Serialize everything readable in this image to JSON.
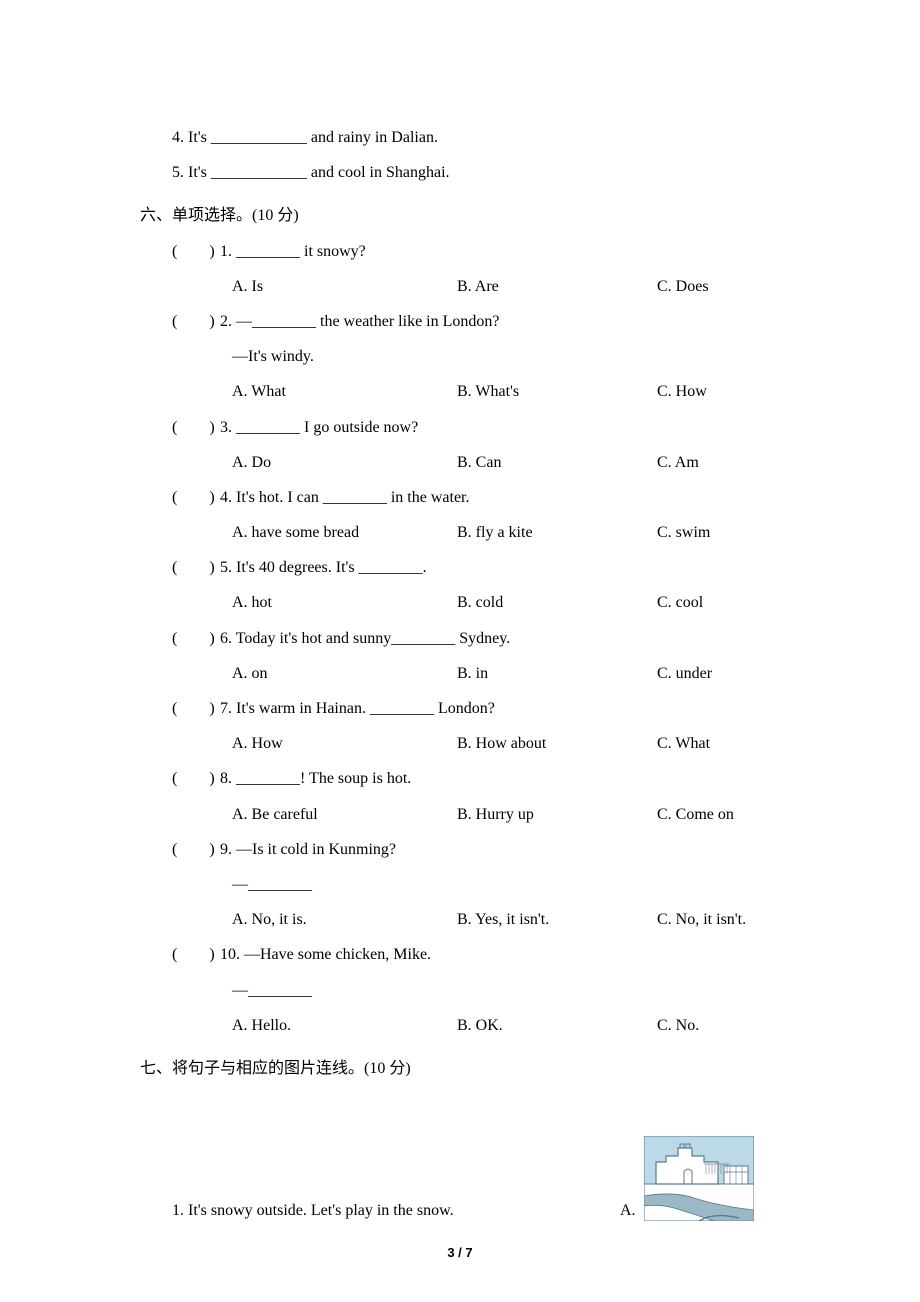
{
  "fill": {
    "q4": "4. It's ____________ and rainy in Dalian.",
    "q5": "5. It's ____________ and cool in Shanghai."
  },
  "section6": {
    "heading": "六、单项选择。(10 分)",
    "items": [
      {
        "bracket": "(　　)",
        "q": "1. ________ it snowy?",
        "followups": [],
        "a": "A. Is",
        "b": "B. Are",
        "c": "C. Does"
      },
      {
        "bracket": "(　　)",
        "q": "2. —________ the weather like in London?",
        "followups": [
          "—It's windy."
        ],
        "a": "A. What",
        "b": "B. What's",
        "c": "C. How"
      },
      {
        "bracket": "(　　)",
        "q": "3. ________ I go outside now?",
        "followups": [],
        "a": "A. Do",
        "b": "B. Can",
        "c": "C. Am"
      },
      {
        "bracket": "(　　)",
        "q": "4. It's hot. I can ________ in the water.",
        "followups": [],
        "a": "A. have some bread",
        "b": "B. fly a kite",
        "c": "C. swim"
      },
      {
        "bracket": "(　　)",
        "q": "5. It's 40 degrees. It's ________.",
        "followups": [],
        "a": "A. hot",
        "b": "B. cold",
        "c": "C. cool"
      },
      {
        "bracket": "(　　)",
        "q": "6. Today it's hot and sunny________ Sydney.",
        "followups": [],
        "a": "A. on",
        "b": "B. in",
        "c": "C. under"
      },
      {
        "bracket": "(　　)",
        "q": "7. It's warm in Hainan. ________ London?",
        "followups": [],
        "a": "A. How",
        "b": "B. How about",
        "c": "C. What"
      },
      {
        "bracket": "(　　)",
        "q": "8. ________! The soup is hot.",
        "followups": [],
        "a": "A. Be careful",
        "b": "B. Hurry up",
        "c": "C. Come on"
      },
      {
        "bracket": "(　　)",
        "q": "9. —Is it cold in Kunming?",
        "followups": [
          "—________"
        ],
        "a": "A. No, it is.",
        "b": "B. Yes, it isn't.",
        "c": "C. No, it isn't."
      },
      {
        "bracket": "(　　)",
        "q": "10. —Have some chicken, Mike.",
        "followups": [
          "—________"
        ],
        "a": "A. Hello.",
        "b": "B. OK.",
        "c": "C. No."
      }
    ]
  },
  "section7": {
    "heading": "七、将句子与相应的图片连线。(10 分)",
    "q1": "1. It's snowy outside. Let's play in the snow.",
    "imgLabel": "A.",
    "iconName": "scene-illustration-icon",
    "iconColors": {
      "sky": "#bcd9e8",
      "ground": "#ffffff",
      "line": "#5a7a8a",
      "fence": "#6b8896",
      "path": "#9ab8c6"
    }
  },
  "pageNum": "3 / 7"
}
